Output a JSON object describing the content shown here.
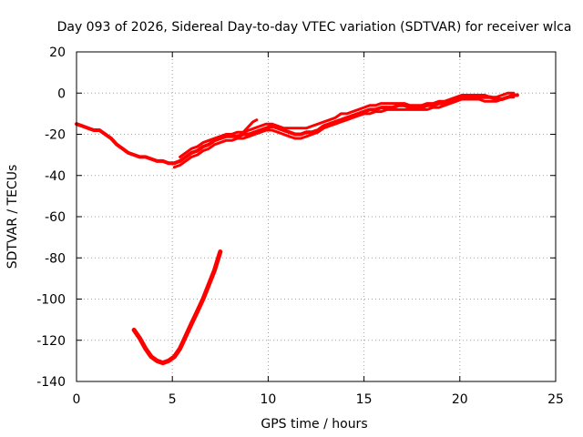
{
  "chart_data": {
    "type": "line",
    "title": "Day 093 of 2026, Sidereal Day-to-day VTEC variation (SDTVAR) for receiver wlca",
    "xlabel": "GPS time / hours",
    "ylabel": "SDTVAR / TECUs",
    "xlim": [
      0,
      25
    ],
    "ylim": [
      -140,
      20
    ],
    "xticks": [
      0,
      5,
      10,
      15,
      20,
      25
    ],
    "yticks": [
      -140,
      -120,
      -100,
      -80,
      -60,
      -40,
      -20,
      0,
      20
    ],
    "xtick_labels": [
      "0",
      "5",
      "10",
      "15",
      "20",
      "25"
    ],
    "ytick_labels": [
      "-140",
      "-120",
      "-100",
      "-80",
      "-60",
      "-40",
      "-20",
      "0",
      "20"
    ],
    "grid": true,
    "color": "#ff0000",
    "series": [
      {
        "name": "main-trace",
        "x": [
          0.0,
          0.3,
          0.6,
          0.9,
          1.2,
          1.5,
          1.8,
          2.1,
          2.4,
          2.7,
          3.0,
          3.3,
          3.6,
          3.9,
          4.2,
          4.5,
          4.8,
          5.1,
          5.4,
          5.7,
          6.0,
          6.3,
          6.6,
          6.9,
          7.2,
          7.5,
          7.8,
          8.1,
          8.4,
          8.7,
          9.0,
          9.3,
          9.6,
          9.9,
          10.2,
          10.5,
          10.8,
          11.1,
          11.4,
          11.7,
          12.0,
          12.3,
          12.6,
          12.9,
          13.2,
          13.5,
          13.8,
          14.1,
          14.4,
          14.7,
          15.0,
          15.3,
          15.6,
          15.9,
          16.2,
          16.5,
          16.8,
          17.1,
          17.4,
          17.7,
          18.0,
          18.3,
          18.6,
          18.9,
          19.2,
          19.5,
          19.8,
          20.1,
          20.4,
          20.7,
          21.0,
          21.3,
          21.6,
          21.9,
          22.2,
          22.5,
          22.8,
          23.0
        ],
        "y": [
          -15,
          -16,
          -17,
          -18,
          -18,
          -20,
          -22,
          -25,
          -27,
          -29,
          -30,
          -31,
          -31,
          -32,
          -33,
          -33,
          -34,
          -34,
          -33,
          -31,
          -29,
          -28,
          -26,
          -25,
          -23,
          -22,
          -21,
          -21,
          -21,
          -20,
          -20,
          -19,
          -18,
          -17,
          -16,
          -17,
          -18,
          -19,
          -20,
          -20,
          -19,
          -19,
          -18,
          -16,
          -15,
          -14,
          -13,
          -12,
          -11,
          -10,
          -9,
          -8,
          -8,
          -7,
          -7,
          -7,
          -6,
          -6,
          -7,
          -7,
          -7,
          -6,
          -6,
          -5,
          -5,
          -4,
          -3,
          -2,
          -2,
          -2,
          -2,
          -2,
          -2,
          -3,
          -3,
          -2,
          -1,
          -1
        ],
        "width": 4
      },
      {
        "name": "main-trace-upper",
        "x": [
          5.4,
          5.7,
          6.0,
          6.3,
          6.6,
          6.9,
          7.2,
          7.5,
          7.8,
          8.1,
          8.4,
          8.7,
          9.0,
          9.3,
          9.6,
          9.9,
          10.2,
          10.5,
          10.8,
          11.1,
          11.4,
          11.7,
          12.0,
          12.3,
          12.6,
          12.9,
          13.2,
          13.5,
          13.8,
          14.1,
          14.4,
          14.7,
          15.0,
          15.3,
          15.6,
          15.9,
          16.2,
          16.5,
          16.8,
          17.1,
          17.4,
          17.7,
          18.0,
          18.3,
          18.6,
          18.9,
          19.2,
          19.5,
          19.8,
          20.1,
          20.4,
          20.7,
          21.0,
          21.3,
          21.6,
          21.9,
          22.2,
          22.5,
          22.8
        ],
        "y": [
          -31,
          -29,
          -27,
          -26,
          -24,
          -23,
          -22,
          -21,
          -20,
          -20,
          -19,
          -19,
          -18,
          -17,
          -16,
          -15,
          -15,
          -16,
          -17,
          -17,
          -17,
          -17,
          -17,
          -16,
          -15,
          -14,
          -13,
          -12,
          -10,
          -10,
          -9,
          -8,
          -7,
          -6,
          -6,
          -5,
          -5,
          -5,
          -5,
          -5,
          -6,
          -6,
          -6,
          -5,
          -5,
          -4,
          -4,
          -3,
          -2,
          -1,
          -1,
          -1,
          -1,
          -1,
          -2,
          -2,
          -1,
          0,
          0
        ],
        "width": 3
      },
      {
        "name": "main-trace-lower",
        "x": [
          5.1,
          5.4,
          5.7,
          6.0,
          6.3,
          6.6,
          6.9,
          7.2,
          7.5,
          7.8,
          8.1,
          8.4,
          8.7,
          9.0,
          9.3,
          9.6,
          9.9,
          10.2,
          10.5,
          10.8,
          11.1,
          11.4,
          11.7,
          12.0,
          12.3,
          12.6,
          12.9,
          13.2,
          13.5,
          13.8,
          14.1,
          14.4,
          14.7,
          15.0,
          15.3,
          15.6,
          15.9,
          16.2,
          16.5,
          16.8,
          17.1,
          17.4,
          17.7,
          18.0,
          18.3,
          18.6,
          18.9,
          19.2,
          19.5,
          19.8,
          20.1,
          20.4,
          20.7,
          21.0,
          21.3,
          21.6,
          21.9,
          22.2,
          22.5,
          22.8
        ],
        "y": [
          -36,
          -35,
          -33,
          -31,
          -30,
          -28,
          -27,
          -25,
          -24,
          -23,
          -23,
          -22,
          -22,
          -21,
          -20,
          -19,
          -18,
          -18,
          -19,
          -20,
          -21,
          -22,
          -22,
          -21,
          -20,
          -19,
          -17,
          -16,
          -15,
          -14,
          -13,
          -12,
          -11,
          -10,
          -10,
          -9,
          -9,
          -8,
          -8,
          -8,
          -8,
          -8,
          -8,
          -8,
          -8,
          -7,
          -7,
          -6,
          -5,
          -4,
          -3,
          -3,
          -3,
          -3,
          -4,
          -4,
          -4,
          -3,
          -2,
          -2
        ],
        "width": 3
      },
      {
        "name": "spike-near-9h",
        "x": [
          8.6,
          8.9,
          9.2,
          9.4
        ],
        "y": [
          -20,
          -17,
          -14,
          -13
        ],
        "width": 3
      },
      {
        "name": "deep-dip-trace",
        "x": [
          3.0,
          3.3,
          3.6,
          3.9,
          4.2,
          4.5,
          4.8,
          5.1,
          5.4,
          5.7,
          6.0,
          6.3,
          6.6,
          6.9,
          7.2,
          7.5
        ],
        "y": [
          -115,
          -119,
          -124,
          -128,
          -130,
          -131,
          -130,
          -128,
          -124,
          -118,
          -112,
          -106,
          -100,
          -93,
          -86,
          -77
        ],
        "width": 5
      }
    ]
  }
}
